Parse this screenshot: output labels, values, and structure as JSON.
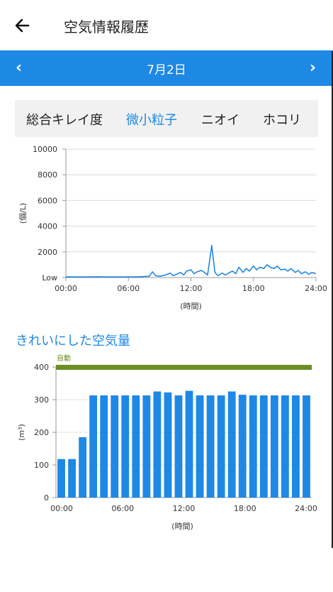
{
  "header": {
    "title": "空気情報履歴",
    "back_icon": "arrow-left-icon"
  },
  "date_nav": {
    "date": "7月2日",
    "prev": "‹",
    "next": "›",
    "accent_color": "#1e88e5"
  },
  "tabs": [
    {
      "label": "総合キレイ度",
      "active": false
    },
    {
      "label": "微小粒子",
      "active": true
    },
    {
      "label": "ニオイ",
      "active": false
    },
    {
      "label": "ホコリ",
      "active": false
    }
  ],
  "section": {
    "title": "きれいにした空気量"
  },
  "chart_data": [
    {
      "type": "line",
      "ylabel": "(個/L)",
      "xlabel": "(時間)",
      "ylim": [
        0,
        10000
      ],
      "xlim": [
        0,
        24
      ],
      "yticks": [
        {
          "value": 0,
          "label": "Low"
        },
        {
          "value": 2000,
          "label": "2000"
        },
        {
          "value": 4000,
          "label": "4000"
        },
        {
          "value": 6000,
          "label": "6000"
        },
        {
          "value": 8000,
          "label": "8000"
        },
        {
          "value": 10000,
          "label": "10000"
        }
      ],
      "xticks": [
        "00:00",
        "06:00",
        "12:00",
        "18:00",
        "24:00"
      ],
      "grid": true,
      "color": "#1e88e5",
      "x": [
        0,
        0.5,
        1,
        1.5,
        2,
        2.5,
        3,
        3.5,
        4,
        4.5,
        5,
        5.5,
        6,
        6.5,
        7,
        7.5,
        8,
        8.3,
        8.6,
        9,
        9.5,
        10,
        10.3,
        10.6,
        11,
        11.3,
        11.6,
        12,
        12.3,
        12.6,
        13,
        13.3,
        13.6,
        14,
        14.3,
        14.6,
        15,
        15.3,
        15.6,
        16,
        16.3,
        16.6,
        17,
        17.3,
        17.6,
        18,
        18.3,
        18.6,
        19,
        19.3,
        19.6,
        20,
        20.3,
        20.6,
        21,
        21.3,
        21.6,
        22,
        22.3,
        22.6,
        23,
        23.3,
        23.6,
        24
      ],
      "y": [
        50,
        50,
        50,
        50,
        50,
        50,
        60,
        50,
        50,
        50,
        50,
        50,
        50,
        50,
        60,
        80,
        100,
        450,
        150,
        100,
        180,
        350,
        150,
        250,
        400,
        200,
        500,
        600,
        300,
        450,
        550,
        400,
        200,
        2500,
        400,
        150,
        350,
        200,
        350,
        500,
        300,
        800,
        400,
        700,
        500,
        900,
        600,
        800,
        700,
        1000,
        800,
        700,
        900,
        600,
        650,
        500,
        700,
        400,
        550,
        300,
        450,
        250,
        400,
        300
      ]
    },
    {
      "type": "bar",
      "ylabel": "(m³)",
      "xlabel": "(時間)",
      "ylim": [
        0,
        400
      ],
      "yticks": [
        0,
        100,
        200,
        300,
        400
      ],
      "xticks": [
        "00:00",
        "06:00",
        "12:00",
        "18:00",
        "24:00"
      ],
      "color": "#1e88e5",
      "auto_label": "自動",
      "auto_color": "#6a8e23",
      "values": [
        118,
        118,
        185,
        313,
        313,
        313,
        313,
        313,
        313,
        325,
        322,
        313,
        327,
        313,
        313,
        313,
        325,
        315,
        313,
        313,
        313,
        313,
        313,
        313
      ]
    }
  ]
}
